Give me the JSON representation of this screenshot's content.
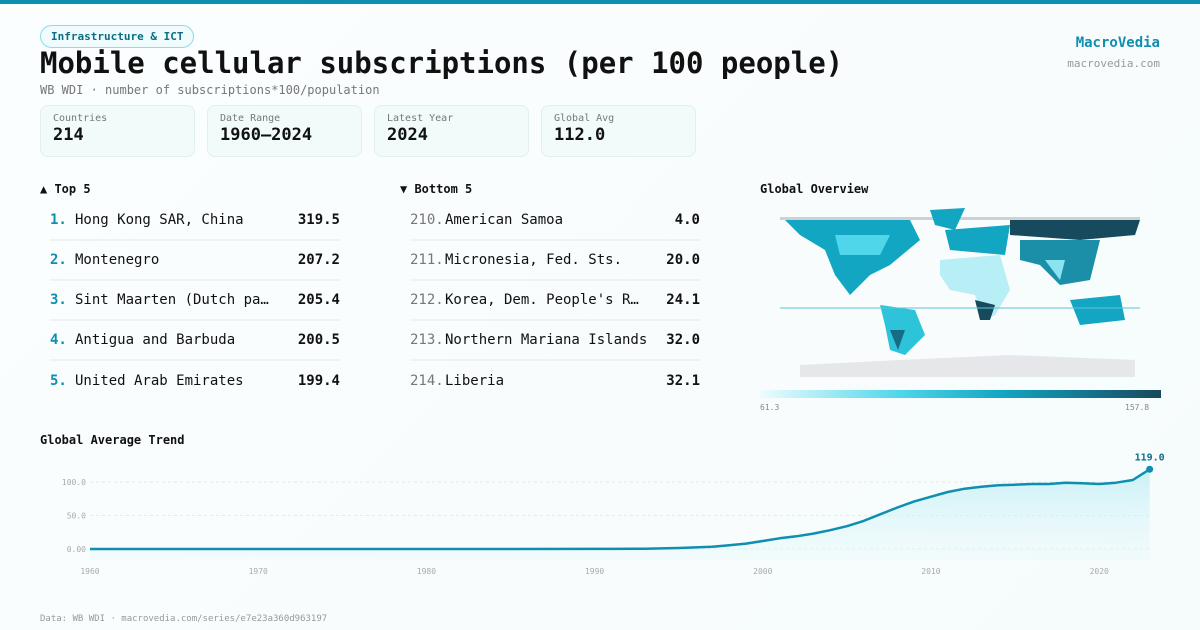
{
  "header": {
    "category": "Infrastructure & ICT",
    "title": "Mobile cellular subscriptions (per 100 people)",
    "subtitle": "WB WDI · number of subscriptions*100/population",
    "brand": "MacroVedia",
    "brand_url": "macrovedia.com"
  },
  "stats": [
    {
      "label": "Countries",
      "value": "214"
    },
    {
      "label": "Date Range",
      "value": "1960–2024"
    },
    {
      "label": "Latest Year",
      "value": "2024"
    },
    {
      "label": "Global Avg",
      "value": "112.0"
    }
  ],
  "top5": {
    "title": "▲ Top 5",
    "items": [
      {
        "rank": "1.",
        "name": "Hong Kong SAR, China",
        "value": "319.5"
      },
      {
        "rank": "2.",
        "name": "Montenegro",
        "value": "207.2"
      },
      {
        "rank": "3.",
        "name": "Sint Maarten (Dutch pa…",
        "value": "205.4"
      },
      {
        "rank": "4.",
        "name": "Antigua and Barbuda",
        "value": "200.5"
      },
      {
        "rank": "5.",
        "name": "United Arab Emirates",
        "value": "199.4"
      }
    ]
  },
  "bottom5": {
    "title": "▼ Bottom 5",
    "items": [
      {
        "rank": "210.",
        "name": "American Samoa",
        "value": "4.0"
      },
      {
        "rank": "211.",
        "name": "Micronesia, Fed. Sts.",
        "value": "20.0"
      },
      {
        "rank": "212.",
        "name": "Korea, Dem. People's R…",
        "value": "24.1"
      },
      {
        "rank": "213.",
        "name": "Northern Mariana Islands",
        "value": "32.0"
      },
      {
        "rank": "214.",
        "name": "Liberia",
        "value": "32.1"
      }
    ]
  },
  "map": {
    "title": "Global Overview",
    "legend_min": "61.3",
    "legend_max": "157.8",
    "colors": [
      "#effcfe",
      "#4fd6ea",
      "#13a6c2",
      "#166c85",
      "#174a5c"
    ]
  },
  "chart_data": {
    "type": "area",
    "title": "Global Average Trend",
    "x": [
      1960,
      1965,
      1970,
      1975,
      1980,
      1985,
      1990,
      1991,
      1993,
      1995,
      1997,
      1998,
      1999,
      2000,
      2001,
      2002,
      2003,
      2004,
      2005,
      2006,
      2007,
      2008,
      2009,
      2010,
      2011,
      2012,
      2013,
      2014,
      2015,
      2016,
      2017,
      2018,
      2019,
      2020,
      2021,
      2022,
      2023
    ],
    "y": [
      0,
      0,
      0,
      0,
      0,
      0,
      0.1,
      0.2,
      0.5,
      1.5,
      3.5,
      5.5,
      8,
      12,
      16,
      19,
      23,
      28,
      34,
      42,
      52,
      62,
      71,
      78,
      85,
      90,
      93,
      95,
      96,
      97,
      97,
      99,
      98,
      97,
      99,
      103,
      119
    ],
    "yticks": [
      "0.00",
      "50.0",
      "100.0"
    ],
    "ytick_values": [
      0,
      50,
      100
    ],
    "xticks": [
      1960,
      1970,
      1980,
      1990,
      2000,
      2010,
      2020
    ],
    "last_label": "119.0",
    "color": "#0e8fb0",
    "grid": true
  },
  "footer": "Data: WB WDI · macrovedia.com/series/e7e23a360d963197"
}
